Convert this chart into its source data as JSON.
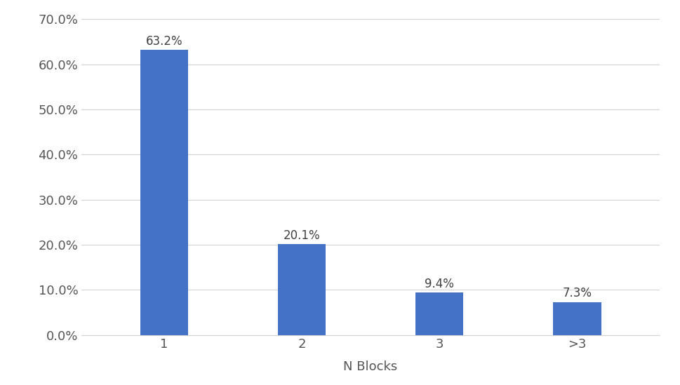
{
  "categories": [
    "1",
    "2",
    "3",
    ">3"
  ],
  "values": [
    0.632,
    0.201,
    0.094,
    0.073
  ],
  "labels": [
    "63.2%",
    "20.1%",
    "9.4%",
    "7.3%"
  ],
  "bar_color": "#4472C4",
  "xlabel": "N Blocks",
  "ylabel": "",
  "ylim": [
    0.0,
    0.7
  ],
  "yticks": [
    0.0,
    0.1,
    0.2,
    0.3,
    0.4,
    0.5,
    0.6,
    0.7
  ],
  "ytick_labels": [
    "0.0%",
    "10.0%",
    "20.0%",
    "30.0%",
    "40.0%",
    "50.0%",
    "60.0%",
    "70.0%"
  ],
  "background_color": "#ffffff",
  "grid_color": "#d3d3d3",
  "bar_width": 0.35,
  "label_fontsize": 12,
  "tick_fontsize": 13,
  "xlabel_fontsize": 13
}
